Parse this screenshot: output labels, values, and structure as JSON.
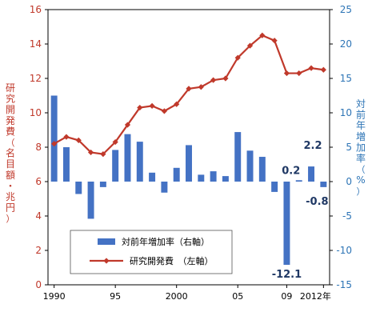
{
  "chart_data": {
    "type": "bar+line",
    "x_tick_labels": [
      "1990",
      "95",
      "2000",
      "05",
      "09",
      "2012年"
    ],
    "years": [
      1990,
      1991,
      1992,
      1993,
      1994,
      1995,
      1996,
      1997,
      1998,
      1999,
      2000,
      2001,
      2002,
      2003,
      2004,
      2005,
      2006,
      2007,
      2008,
      2009,
      2010,
      2011,
      2012
    ],
    "left_axis": {
      "label": "研究開発費（名目額・兆円）",
      "ylim": [
        0,
        16
      ],
      "ticks": [
        "0",
        "2",
        "4",
        "6",
        "8",
        "10",
        "12",
        "14",
        "16"
      ]
    },
    "right_axis": {
      "label": "対前年増加率（%）",
      "ylim": [
        -15,
        25
      ],
      "ticks": [
        "-15",
        "-10",
        "-5",
        "0",
        "5",
        "10",
        "15",
        "20",
        "25"
      ]
    },
    "series": [
      {
        "name": "対前年増加率（右軸）",
        "type": "bar",
        "axis": "right",
        "color": "#4472c4",
        "values": [
          12.5,
          5.0,
          -1.8,
          -5.4,
          -0.8,
          4.6,
          6.9,
          5.8,
          1.3,
          -1.6,
          2.0,
          5.3,
          1.0,
          1.5,
          0.8,
          7.2,
          4.5,
          3.6,
          -1.5,
          -12.1,
          0.2,
          2.2,
          -0.8
        ]
      },
      {
        "name": "研究開発費　（左軸）",
        "type": "line",
        "axis": "left",
        "color": "#c0392b",
        "values": [
          8.2,
          8.6,
          8.4,
          7.7,
          7.6,
          8.3,
          9.3,
          10.3,
          10.4,
          10.1,
          10.5,
          11.4,
          11.5,
          11.9,
          12.0,
          13.2,
          13.9,
          14.5,
          14.2,
          12.3,
          12.3,
          12.6,
          12.5
        ]
      }
    ],
    "annotations": [
      {
        "text": "-12.1",
        "year": 2009,
        "value": -12.1
      },
      {
        "text": "0.2",
        "year": 2010,
        "value": 0.2
      },
      {
        "text": "2.2",
        "year": 2011,
        "value": 2.2
      },
      {
        "text": "-0.8",
        "year": 2012,
        "value": -0.8
      }
    ],
    "legend": {
      "placement": "bottom-left",
      "entries": [
        "対前年増加率（右軸）",
        "研究開発費　（左軸）"
      ]
    },
    "grid": false
  }
}
